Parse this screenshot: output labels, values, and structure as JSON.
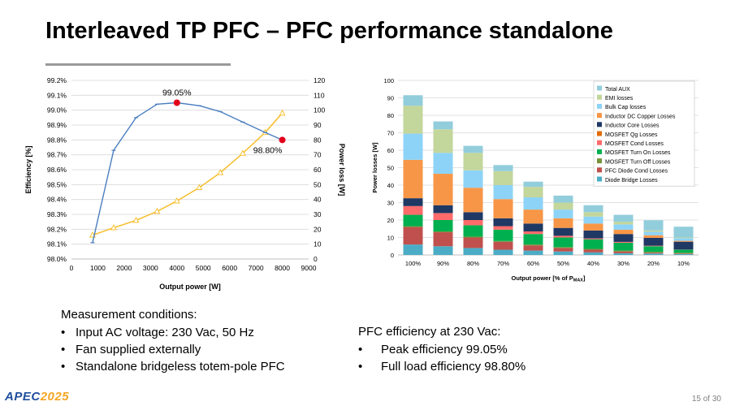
{
  "slide": {
    "title": "Interleaved TP PFC – PFC performance standalone",
    "page_number": "15 of 30",
    "logo_main": "APEC",
    "logo_year": "2025"
  },
  "measurement": {
    "heading": "Measurement conditions:",
    "items": [
      "Input AC voltage: 230 Vac, 50 Hz",
      "Fan supplied externally",
      "Standalone bridgeless totem-pole PFC"
    ]
  },
  "efficiency_summary": {
    "heading": "PFC efficiency at 230 Vac:",
    "items": [
      "Peak efficiency 99.05%",
      "Full load efficiency 98.80%"
    ]
  },
  "colors": {
    "efficiency": "#4a7ebf",
    "power_loss": "#f7c134",
    "highlight": "#e3001b"
  },
  "chart_data": [
    {
      "type": "line",
      "xlabel": "Output power [W]",
      "ylabel": "Efficiency [%]",
      "y2label": "Power loss [W]",
      "xlim": [
        0,
        9000
      ],
      "xticks": [
        "0",
        "1000",
        "2000",
        "3000",
        "4000",
        "5000",
        "6000",
        "7000",
        "8000",
        "9000"
      ],
      "ylim": [
        98.0,
        99.2
      ],
      "yticks": [
        "98.0%",
        "98.1%",
        "98.2%",
        "98.3%",
        "98.4%",
        "98.5%",
        "98.6%",
        "98.7%",
        "98.8%",
        "98.9%",
        "99.0%",
        "99.1%",
        "99.2%"
      ],
      "y2lim": [
        0,
        120
      ],
      "y2ticks": [
        "0",
        "10",
        "20",
        "30",
        "40",
        "50",
        "60",
        "70",
        "80",
        "90",
        "100",
        "110",
        "120"
      ],
      "grid": true,
      "series": [
        {
          "axis": "left",
          "x": [
            800,
            1600,
            2450,
            3250,
            4000,
            4850,
            5650,
            6500,
            7350,
            8000
          ],
          "values": [
            98.11,
            98.73,
            98.95,
            99.04,
            99.05,
            99.03,
            98.99,
            98.92,
            98.85,
            98.8
          ]
        },
        {
          "axis": "right",
          "x": [
            800,
            1600,
            2450,
            3250,
            4000,
            4850,
            5650,
            6500,
            7350,
            8000
          ],
          "values": [
            16,
            21,
            26,
            32,
            39,
            48,
            58,
            71,
            85,
            98
          ]
        }
      ],
      "annotations": [
        {
          "text": "99.05%",
          "x": 4000,
          "value": 99.05
        },
        {
          "text": "98.80%",
          "x": 8000,
          "value": 98.8
        }
      ]
    },
    {
      "type": "bar",
      "stacked": true,
      "xlabel": "Output power [% of P",
      "xlabel_sub": "MAX",
      "xlabel_end": "]",
      "ylabel": "Power losses [W]",
      "ylim": [
        0,
        100
      ],
      "yticks": [
        "0",
        "10",
        "20",
        "30",
        "40",
        "50",
        "60",
        "70",
        "80",
        "90",
        "100"
      ],
      "grid": true,
      "legend_position": "top-right",
      "categories": [
        "100%",
        "90%",
        "80%",
        "70%",
        "60%",
        "50%",
        "40%",
        "30%",
        "20%",
        "10%"
      ],
      "series": [
        {
          "name": "Diode Bridge Losses",
          "color": "#4bacc6",
          "values": [
            6,
            5,
            4,
            3,
            2.5,
            2,
            1.5,
            1,
            0.8,
            0.5
          ]
        },
        {
          "name": "PFC Diode Cond Losses",
          "color": "#c0504d",
          "values": [
            10,
            8,
            6,
            4.5,
            3,
            2,
            1.5,
            1,
            0.5,
            0.3
          ]
        },
        {
          "name": "MOSFET Turn Off Losses",
          "color": "#77933c",
          "values": [
            0.5,
            0.5,
            0.5,
            0.5,
            0.5,
            0.5,
            0.5,
            0.5,
            0.5,
            0.5
          ]
        },
        {
          "name": "MOSFET Turn On Losses",
          "color": "#00b050",
          "values": [
            6.5,
            6.5,
            6.5,
            6.5,
            6,
            5.5,
            5.5,
            4.5,
            3.2,
            1.7
          ]
        },
        {
          "name": "MOSFET Cond Losses",
          "color": "#ff6b6b",
          "values": [
            5,
            4,
            3,
            2,
            1.5,
            1,
            0.5,
            0.5,
            0.3,
            0.1
          ]
        },
        {
          "name": "MOSFET Qg Losses",
          "color": "#e46c0a",
          "values": [
            0,
            0,
            0,
            0,
            0,
            0,
            0,
            0,
            0,
            0
          ]
        },
        {
          "name": "Inductor Core Losses",
          "color": "#1f3864",
          "values": [
            4.5,
            4.5,
            4.5,
            4.5,
            4.5,
            4.5,
            4.5,
            4.5,
            4.5,
            4.5
          ]
        },
        {
          "name": "Inductor DC Copper Losses",
          "color": "#f79646",
          "values": [
            22,
            18,
            14,
            11,
            8,
            5.5,
            4,
            2.5,
            1.5,
            0.5
          ]
        },
        {
          "name": "Bulk Cap losses",
          "color": "#8dd3f7",
          "values": [
            15,
            12,
            10,
            8,
            7,
            5,
            4,
            3,
            2,
            1.5
          ]
        },
        {
          "name": "EMI losses",
          "color": "#c3d69b",
          "values": [
            16,
            13.5,
            10,
            8,
            6,
            4,
            2.5,
            1.5,
            0.8,
            0.4
          ]
        },
        {
          "name": "Total AUX",
          "color": "#92cddc",
          "values": [
            6,
            4.5,
            4,
            3.5,
            3,
            4,
            4,
            4,
            5.8,
            6.2
          ]
        }
      ]
    }
  ]
}
